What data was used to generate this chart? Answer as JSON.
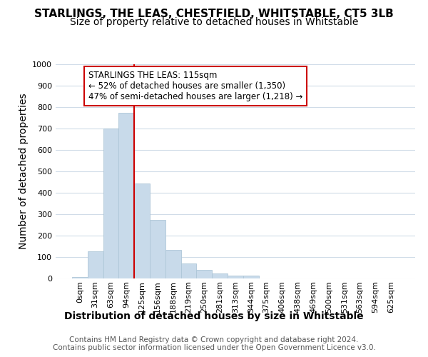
{
  "title": "STARLINGS, THE LEAS, CHESTFIELD, WHITSTABLE, CT5 3LB",
  "subtitle": "Size of property relative to detached houses in Whitstable",
  "xlabel": "Distribution of detached houses by size in Whitstable",
  "ylabel": "Number of detached properties",
  "footer_line1": "Contains HM Land Registry data © Crown copyright and database right 2024.",
  "footer_line2": "Contains public sector information licensed under the Open Government Licence v3.0.",
  "bin_labels": [
    "0sqm",
    "31sqm",
    "63sqm",
    "94sqm",
    "125sqm",
    "156sqm",
    "188sqm",
    "219sqm",
    "250sqm",
    "281sqm",
    "313sqm",
    "344sqm",
    "375sqm",
    "406sqm",
    "438sqm",
    "469sqm",
    "500sqm",
    "531sqm",
    "563sqm",
    "594sqm",
    "625sqm"
  ],
  "bar_values": [
    7,
    127,
    700,
    775,
    443,
    273,
    132,
    70,
    40,
    22,
    12,
    12,
    0,
    0,
    0,
    0,
    0,
    0,
    0,
    0,
    0
  ],
  "bar_color": "#c8daea",
  "bar_edgecolor": "#aec6d8",
  "annotation_text_line1": "STARLINGS THE LEAS: 115sqm",
  "annotation_text_line2": "← 52% of detached houses are smaller (1,350)",
  "annotation_text_line3": "47% of semi-detached houses are larger (1,218) →",
  "vline_color": "#cc0000",
  "annotation_box_edgecolor": "#cc0000",
  "ylim": [
    0,
    1000
  ],
  "yticks": [
    0,
    100,
    200,
    300,
    400,
    500,
    600,
    700,
    800,
    900,
    1000
  ],
  "background_color": "#ffffff",
  "grid_color": "#d0dce8",
  "title_fontsize": 11,
  "subtitle_fontsize": 10,
  "axis_label_fontsize": 10,
  "tick_fontsize": 8,
  "annotation_fontsize": 8.5,
  "footer_fontsize": 7.5
}
